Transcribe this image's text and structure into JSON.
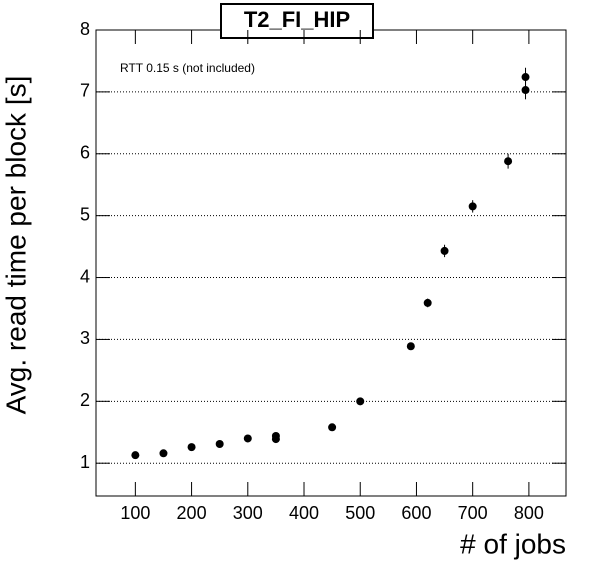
{
  "chart_data": {
    "type": "scatter",
    "title": "T2_FI_HIP",
    "annotation": "RTT 0.15 s (not included)",
    "xlabel": "# of jobs",
    "ylabel": "Avg. read time per block [s]",
    "x": [
      100,
      150,
      200,
      250,
      300,
      350,
      350,
      450,
      500,
      590,
      620,
      650,
      700,
      763,
      794,
      794
    ],
    "values": [
      1.13,
      1.16,
      1.26,
      1.31,
      1.4,
      1.44,
      1.39,
      1.58,
      2.0,
      2.89,
      3.59,
      4.43,
      5.15,
      5.88,
      7.24,
      7.03
    ],
    "errors": [
      0.05,
      0.04,
      0.05,
      0.05,
      0.05,
      0.06,
      0.05,
      0.06,
      0.05,
      0.06,
      0.07,
      0.1,
      0.1,
      0.12,
      0.15,
      0.15
    ],
    "color": "#000000",
    "xlim": [
      30,
      866
    ],
    "ylim": [
      0.47,
      8
    ],
    "xticks": [
      100,
      200,
      300,
      400,
      500,
      600,
      700,
      800
    ],
    "yticks": [
      1,
      2,
      3,
      4,
      5,
      6,
      7,
      8
    ],
    "grid": true
  }
}
